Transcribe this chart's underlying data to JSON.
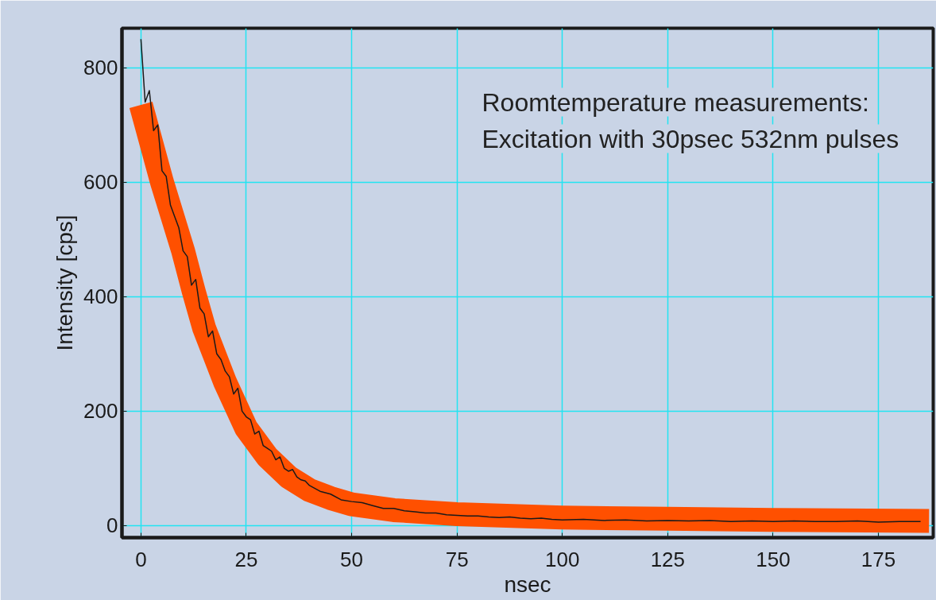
{
  "chart_data": {
    "type": "line",
    "xlabel": "nsec",
    "ylabel": "Intensity [cps]",
    "annotations": [
      "Roomtemperature measurements:",
      "Excitation with 30psec 532nm pulses"
    ],
    "xlim": [
      -4.5,
      188
    ],
    "ylim": [
      -21,
      869
    ],
    "xticks": [
      0,
      25,
      50,
      75,
      100,
      125,
      150,
      175
    ],
    "yticks": [
      0,
      200,
      400,
      600,
      800
    ],
    "grid": true,
    "marker": "none",
    "line_style": "solid",
    "series": [
      {
        "color": "#ff5000",
        "x": [
          0,
          5,
          10,
          12.5,
          15,
          20,
          25,
          30,
          35,
          40,
          45,
          50,
          60,
          75,
          100,
          125,
          150,
          187
        ],
        "values": [
          735,
          600,
          480,
          410,
          345,
          250,
          170,
          120,
          85,
          62,
          48,
          37,
          27,
          20,
          14,
          12,
          10,
          8
        ]
      },
      {
        "color": "#1a1a1a",
        "x": [
          0,
          1,
          2,
          3,
          4,
          5,
          6,
          7,
          8,
          9,
          10,
          11,
          12,
          13,
          14,
          15,
          16,
          17,
          18,
          19,
          20,
          21,
          22,
          23,
          24,
          25,
          26,
          27,
          28,
          29,
          30,
          31,
          32,
          33,
          34,
          35,
          36,
          37,
          38,
          39,
          40,
          42.5,
          45,
          47.5,
          50,
          52.5,
          55,
          57.5,
          60,
          62.5,
          65,
          67.5,
          70,
          72.5,
          75,
          77.5,
          80,
          82.5,
          85,
          87.5,
          90,
          92.5,
          95,
          97.5,
          100,
          105,
          110,
          115,
          120,
          125,
          130,
          135,
          140,
          145,
          150,
          155,
          160,
          165,
          170,
          175,
          180,
          185
        ],
        "values": [
          850,
          740,
          760,
          690,
          700,
          620,
          610,
          560,
          540,
          520,
          480,
          470,
          420,
          430,
          380,
          370,
          330,
          340,
          300,
          290,
          270,
          260,
          230,
          240,
          200,
          190,
          185,
          160,
          165,
          140,
          135,
          130,
          115,
          120,
          100,
          95,
          98,
          85,
          80,
          78,
          70,
          60,
          55,
          45,
          42,
          40,
          35,
          30,
          30,
          26,
          24,
          22,
          22,
          19,
          18,
          17,
          17,
          15,
          14,
          15,
          13,
          12,
          13,
          11,
          10,
          11,
          9,
          10,
          8,
          9,
          8,
          9,
          7,
          8,
          7,
          8,
          7,
          7,
          8,
          6,
          7,
          7
        ]
      }
    ]
  }
}
